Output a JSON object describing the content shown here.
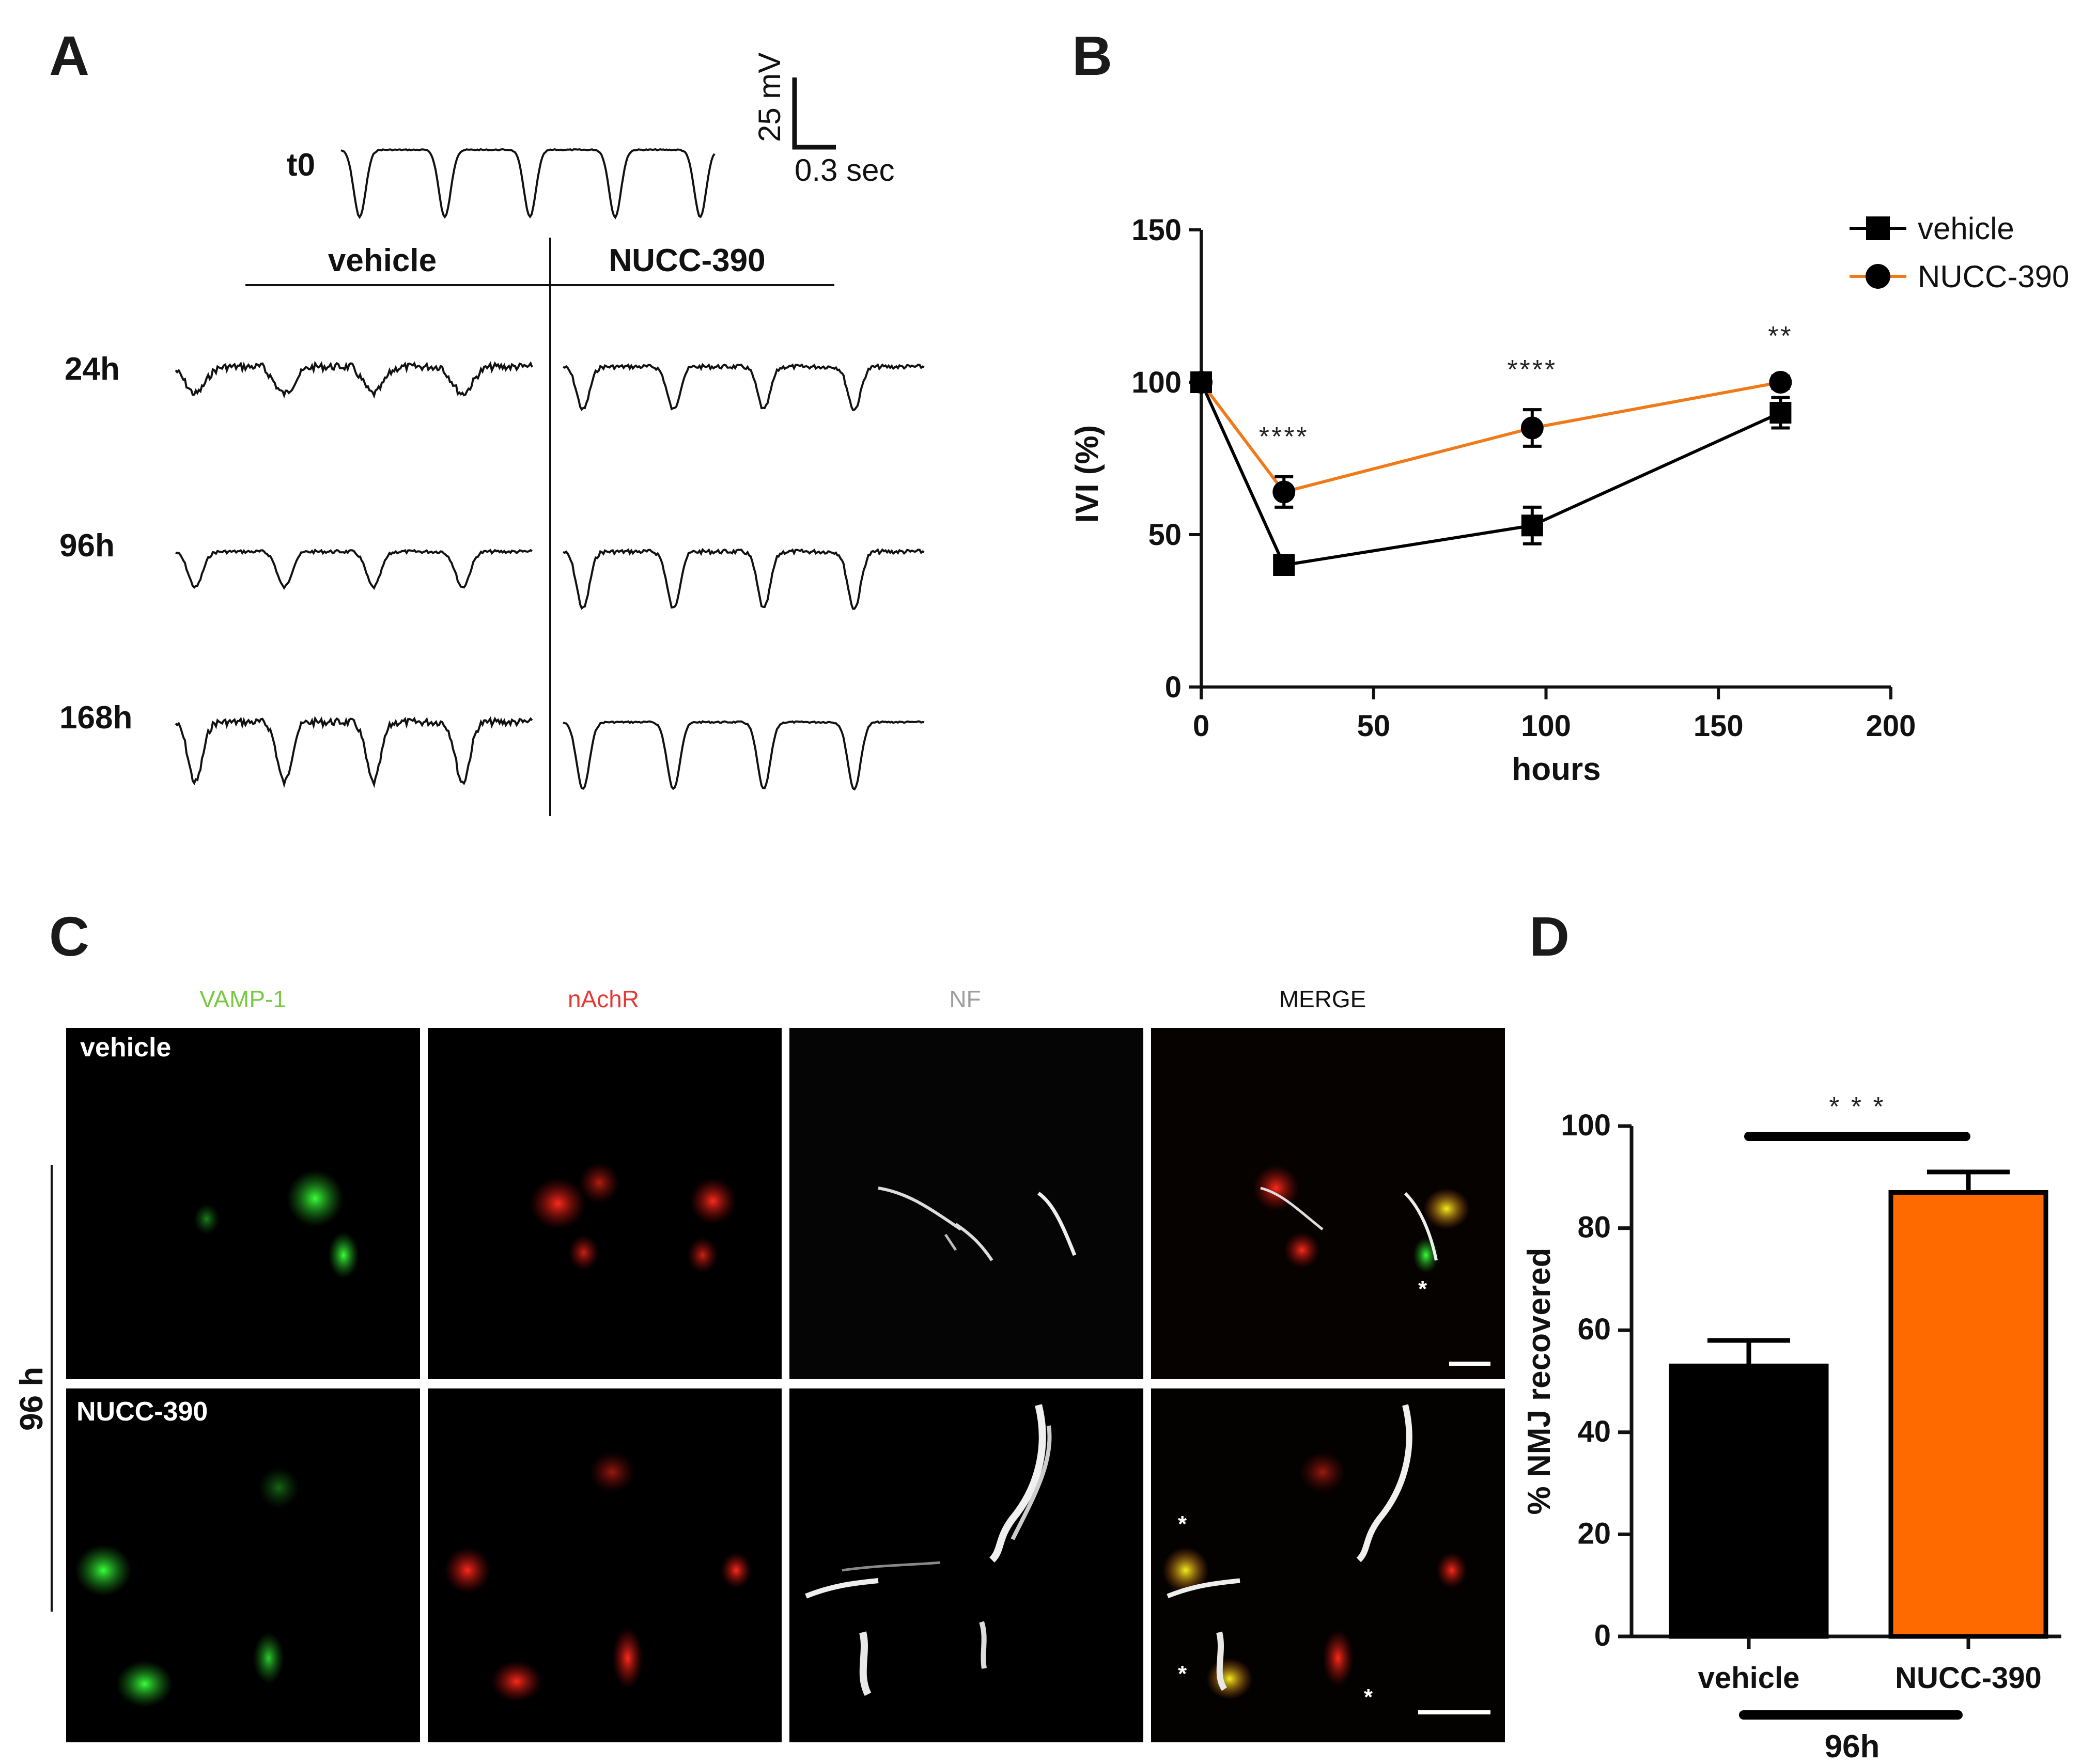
{
  "panel_labels": {
    "a": "A",
    "b": "B",
    "c": "C",
    "d": "D"
  },
  "panel_a": {
    "scale_v": "25 mV",
    "scale_t": "0.3 sec",
    "baseline_label": "t0",
    "col_vehicle": "vehicle",
    "col_nucc": "NUCC-390",
    "rows": [
      "24h",
      "96h",
      "168h"
    ],
    "trace_amplitude_pct": {
      "vehicle": {
        "24h": 40,
        "96h": 53,
        "168h": 90
      },
      "nucc": {
        "24h": 64,
        "96h": 85,
        "168h": 100
      }
    }
  },
  "panel_c": {
    "channels": [
      "VAMP-1",
      "nAchR",
      "NF",
      "MERGE"
    ],
    "channel_colors": [
      "#7ac943",
      "#e53935",
      "#9e9e9e",
      "#111111"
    ],
    "row_labels": [
      "vehicle",
      "NUCC-390"
    ],
    "group_label": "96 h",
    "asterisk": "*"
  },
  "chart_data": [
    {
      "type": "line",
      "xlabel": "hours",
      "ylabel": "IVI (%)",
      "xlim": [
        0,
        200
      ],
      "ylim": [
        0,
        150
      ],
      "xticks": [
        0,
        50,
        100,
        150,
        200
      ],
      "yticks": [
        0,
        50,
        100,
        150
      ],
      "legend": "top-right",
      "series": [
        {
          "name": "vehicle",
          "color": "#000000",
          "marker": "square",
          "x": [
            0,
            24,
            96,
            168
          ],
          "y": [
            100,
            40,
            53,
            90
          ],
          "err": [
            0,
            3,
            6,
            5
          ]
        },
        {
          "name": "NUCC-390",
          "color": "#f07a1a",
          "marker": "circle",
          "x": [
            0,
            24,
            96,
            168
          ],
          "y": [
            100,
            64,
            85,
            100
          ],
          "err": [
            0,
            5,
            6,
            2
          ]
        }
      ],
      "annotations": [
        {
          "x": 24,
          "text": "****"
        },
        {
          "x": 96,
          "text": "****"
        },
        {
          "x": 168,
          "text": "**"
        }
      ]
    },
    {
      "type": "bar",
      "categories": [
        "vehicle",
        "NUCC-390"
      ],
      "values": [
        53,
        87
      ],
      "errors": [
        5,
        4
      ],
      "colors": [
        "#000000",
        "#ff6a00"
      ],
      "ylabel": "% NMJ recovered",
      "xlabel": "96h",
      "ylim": [
        0,
        100
      ],
      "yticks": [
        0,
        20,
        40,
        60,
        80,
        100
      ],
      "significance": "* * *"
    }
  ]
}
